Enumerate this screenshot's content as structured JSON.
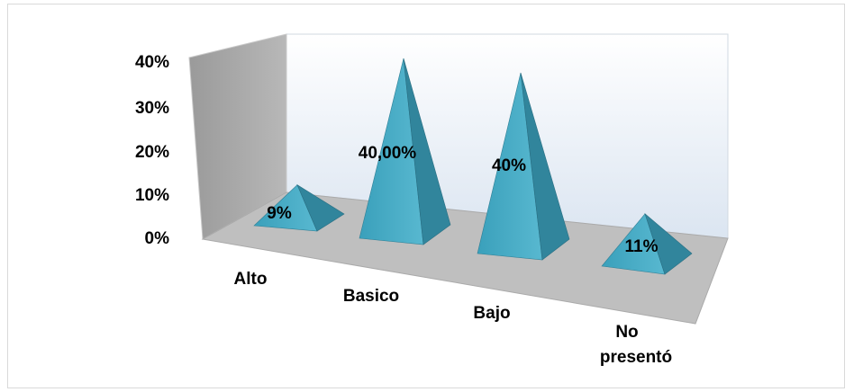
{
  "chart_data": {
    "type": "bar",
    "style": "3d-pyramid",
    "categories": [
      "Alto",
      "Basico",
      "Bajo",
      "No presentó"
    ],
    "category_lines": [
      [
        "Alto"
      ],
      [
        "Basico"
      ],
      [
        "Bajo"
      ],
      [
        "No",
        "presentó"
      ]
    ],
    "values": [
      9,
      40,
      40,
      11
    ],
    "data_labels": [
      "9%",
      "40,00%",
      "40%",
      "11%"
    ],
    "y_ticks": [
      "0%",
      "10%",
      "20%",
      "30%",
      "40%"
    ],
    "ylim": [
      0,
      40
    ],
    "grid": false,
    "legend": "none",
    "colors": {
      "pyramid_light": "#4bacc6",
      "pyramid_dark": "#31859c",
      "back_wall": "#dbe5f1",
      "side_wall": "#a6a6a6",
      "floor": "#bfbfbf"
    }
  }
}
